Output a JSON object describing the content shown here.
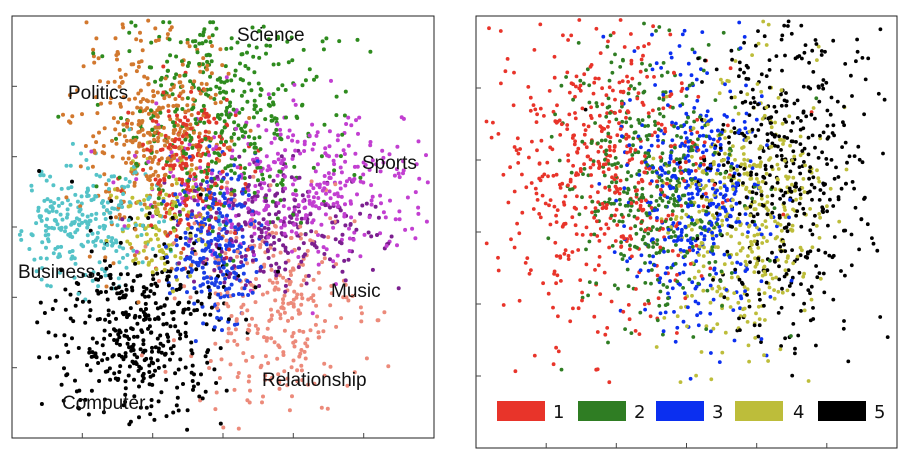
{
  "chart_data": [
    {
      "type": "scatter",
      "title": "",
      "xlabel": "",
      "ylabel": "",
      "grid": false,
      "legend": "none",
      "series": [
        {
          "name": "Science",
          "label": "Science",
          "color": "#2e8b1e",
          "center": [
            0.5,
            0.78
          ],
          "spread": [
            0.12,
            0.14
          ],
          "count": 420
        },
        {
          "name": "Politics",
          "label": "Politics",
          "color": "#d2782e",
          "center": [
            0.33,
            0.72
          ],
          "spread": [
            0.09,
            0.12
          ],
          "count": 360
        },
        {
          "name": "Sports",
          "label": "Sports",
          "color": "#c23fd1",
          "center": [
            0.7,
            0.6
          ],
          "spread": [
            0.17,
            0.09
          ],
          "count": 380
        },
        {
          "name": "Business",
          "label": "Business",
          "color": "#55c3c8",
          "center": [
            0.17,
            0.5
          ],
          "spread": [
            0.09,
            0.07
          ],
          "count": 260
        },
        {
          "name": "Music",
          "label": "Music",
          "color": "#7b1f8f",
          "center": [
            0.63,
            0.5
          ],
          "spread": [
            0.12,
            0.07
          ],
          "count": 240
        },
        {
          "name": "Relationship",
          "label": "Relationship",
          "color": "#ec8a7a",
          "center": [
            0.62,
            0.31
          ],
          "spread": [
            0.1,
            0.12
          ],
          "count": 300
        },
        {
          "name": "Computer",
          "label": "Computer",
          "color": "#000000",
          "center": [
            0.3,
            0.25
          ],
          "spread": [
            0.1,
            0.12
          ],
          "count": 420
        },
        {
          "name": "",
          "label": "",
          "color": "#e0362a",
          "center": [
            0.42,
            0.65
          ],
          "spread": [
            0.06,
            0.09
          ],
          "count": 200
        },
        {
          "name": "",
          "label": "",
          "color": "#1b3fe6",
          "center": [
            0.48,
            0.46
          ],
          "spread": [
            0.05,
            0.09
          ],
          "count": 260
        },
        {
          "name": "",
          "label": "",
          "color": "#bfbf33",
          "center": [
            0.36,
            0.52
          ],
          "spread": [
            0.05,
            0.08
          ],
          "count": 120
        }
      ]
    },
    {
      "type": "scatter",
      "title": "",
      "xlabel": "",
      "ylabel": "",
      "grid": false,
      "legend": "bottom",
      "series": [
        {
          "name": "1",
          "color": "#e8342a",
          "center": [
            0.3,
            0.58
          ],
          "spread": [
            0.13,
            0.2
          ],
          "count": 520
        },
        {
          "name": "2",
          "color": "#2f7d23",
          "center": [
            0.43,
            0.55
          ],
          "spread": [
            0.1,
            0.18
          ],
          "count": 420
        },
        {
          "name": "3",
          "color": "#0b2ff0",
          "center": [
            0.52,
            0.52
          ],
          "spread": [
            0.08,
            0.17
          ],
          "count": 420
        },
        {
          "name": "4",
          "color": "#bdbd3a",
          "center": [
            0.64,
            0.48
          ],
          "spread": [
            0.09,
            0.18
          ],
          "count": 420
        },
        {
          "name": "5",
          "color": "#000000",
          "center": [
            0.74,
            0.58
          ],
          "spread": [
            0.1,
            0.22
          ],
          "count": 480
        }
      ]
    }
  ]
}
